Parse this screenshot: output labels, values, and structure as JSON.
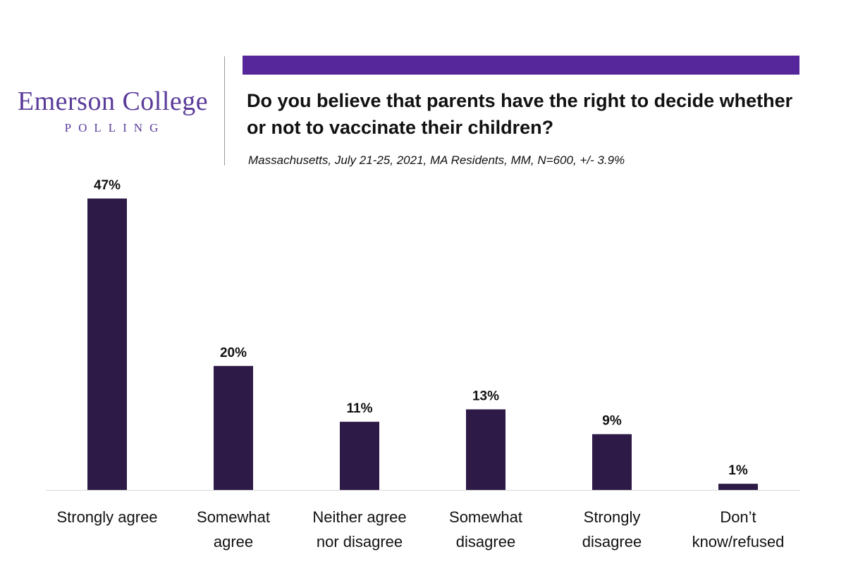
{
  "brand": {
    "name": "Emerson College",
    "tagline": "POLLING",
    "accent_color": "#55279a",
    "bar_color": "#2e1a47"
  },
  "chart_data": {
    "type": "bar",
    "title": "Do you believe that parents have the right to decide whether or not to vaccinate their children?",
    "subtitle": "Massachusetts, July 21-25, 2021, MA Residents, MM, N=600, +/- 3.9%",
    "categories": [
      [
        "Strongly agree"
      ],
      [
        "Somewhat",
        "agree"
      ],
      [
        "Neither agree",
        "nor disagree"
      ],
      [
        "Somewhat",
        "disagree"
      ],
      [
        "Strongly",
        "disagree"
      ],
      [
        "Don’t",
        "know/refused"
      ]
    ],
    "values": [
      47,
      20,
      11,
      13,
      9,
      1
    ],
    "data_labels": [
      "47%",
      "20%",
      "11%",
      "13%",
      "9%",
      "1%"
    ],
    "ylim": [
      0,
      50
    ],
    "grid": false,
    "legend": "none"
  }
}
